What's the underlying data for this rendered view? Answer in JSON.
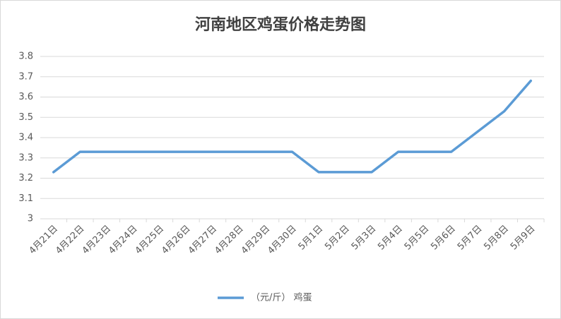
{
  "chart_data": {
    "type": "line",
    "title": "河南地区鸡蛋价格走势图",
    "categories": [
      "4月21日",
      "4月22日",
      "4月23日",
      "4月24日",
      "4月25日",
      "4月26日",
      "4月27日",
      "4月28日",
      "4月29日",
      "4月30日",
      "5月1日",
      "5月2日",
      "5月3日",
      "5月4日",
      "5月5日",
      "5月6日",
      "5月7日",
      "5月8日",
      "5月9日"
    ],
    "series": [
      {
        "name": "（元/斤） 鸡蛋",
        "color": "#5b9bd5",
        "values": [
          3.23,
          3.33,
          3.33,
          3.33,
          3.33,
          3.33,
          3.33,
          3.33,
          3.33,
          3.33,
          3.23,
          3.23,
          3.23,
          3.33,
          3.33,
          3.33,
          3.43,
          3.53,
          3.68
        ]
      }
    ],
    "ylim": [
      3,
      3.8
    ],
    "yticks": [
      3,
      3.1,
      3.2,
      3.3,
      3.4,
      3.5,
      3.6,
      3.7,
      3.8
    ],
    "grid": true,
    "legend": "bottom"
  }
}
